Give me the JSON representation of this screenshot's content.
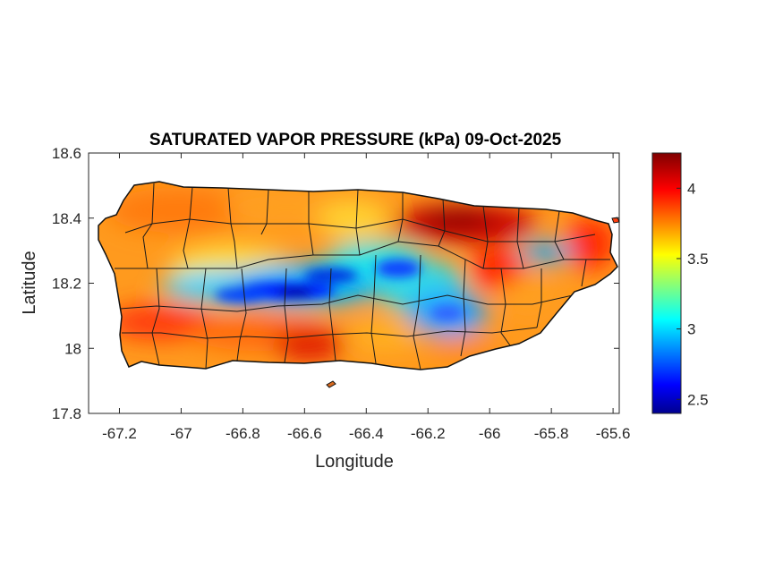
{
  "title": "SATURATED VAPOR PRESSURE (kPa) 09-Oct-2025",
  "xlabel": "Longitude",
  "ylabel": "Latitude",
  "xlim": [
    -67.3,
    -65.58
  ],
  "ylim": [
    17.8,
    18.6
  ],
  "xticks": [
    "-67.2",
    "-67",
    "-66.8",
    "-66.6",
    "-66.4",
    "-66.2",
    "-66",
    "-65.8",
    "-65.6"
  ],
  "xtick_values": [
    -67.2,
    -67.0,
    -66.8,
    -66.6,
    -66.4,
    -66.2,
    -66.0,
    -65.8,
    -65.6
  ],
  "yticks": [
    "17.8",
    "18",
    "18.2",
    "18.4",
    "18.6"
  ],
  "ytick_values": [
    17.8,
    18.0,
    18.2,
    18.4,
    18.6
  ],
  "colorbar": {
    "label_unit": "kPa",
    "range": [
      2.4,
      4.25
    ],
    "ticks": [
      "2.5",
      "3",
      "3.5",
      "4"
    ],
    "tick_values": [
      2.5,
      3.0,
      3.5,
      4.0
    ],
    "colormap": "jet"
  },
  "chart_data": {
    "type": "heatmap",
    "title": "SATURATED VAPOR PRESSURE (kPa) 09-Oct-2025",
    "xlabel": "Longitude",
    "ylabel": "Latitude",
    "xlim": [
      -67.3,
      -65.58
    ],
    "ylim": [
      17.8,
      18.6
    ],
    "value_range": [
      2.4,
      4.25
    ],
    "grid": false,
    "field_samples": [
      {
        "lon": -67.15,
        "lat": 18.38,
        "value": 3.8
      },
      {
        "lon": -66.9,
        "lat": 18.45,
        "value": 3.85
      },
      {
        "lon": -66.7,
        "lat": 18.4,
        "value": 3.75
      },
      {
        "lon": -66.45,
        "lat": 18.42,
        "value": 3.7
      },
      {
        "lon": -66.15,
        "lat": 18.39,
        "value": 4.2
      },
      {
        "lon": -65.95,
        "lat": 18.36,
        "value": 4.1
      },
      {
        "lon": -65.75,
        "lat": 18.33,
        "value": 3.1
      },
      {
        "lon": -65.65,
        "lat": 18.3,
        "value": 4.0
      },
      {
        "lon": -66.85,
        "lat": 18.25,
        "value": 3.4
      },
      {
        "lon": -66.6,
        "lat": 18.16,
        "value": 2.5
      },
      {
        "lon": -66.45,
        "lat": 18.2,
        "value": 2.8
      },
      {
        "lon": -66.25,
        "lat": 18.18,
        "value": 3.0
      },
      {
        "lon": -66.05,
        "lat": 18.2,
        "value": 3.9
      },
      {
        "lon": -67.1,
        "lat": 18.1,
        "value": 4.0
      },
      {
        "lon": -66.8,
        "lat": 18.03,
        "value": 3.95
      },
      {
        "lon": -66.55,
        "lat": 18.02,
        "value": 4.15
      },
      {
        "lon": -66.25,
        "lat": 17.98,
        "value": 3.6
      },
      {
        "lon": -66.0,
        "lat": 18.02,
        "value": 3.75
      },
      {
        "lon": -65.8,
        "lat": 18.1,
        "value": 3.9
      }
    ]
  }
}
